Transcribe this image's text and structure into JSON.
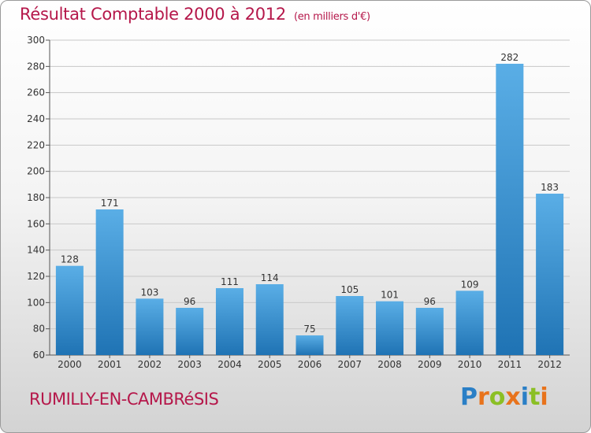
{
  "title": "Résultat Comptable 2000 à 2012",
  "subtitle": "(en milliers d'€)",
  "town": "RUMILLY-EN-CAMBRéSIS",
  "logo": {
    "letters": [
      "P",
      "r",
      "o",
      "x",
      "i",
      "t",
      "i"
    ],
    "colors": [
      "#2a7fc6",
      "#e8731c",
      "#8bbf25",
      "#e8731c",
      "#2a7fc6",
      "#8bbf25",
      "#e8731c"
    ]
  },
  "colors": {
    "bar_light": "#5aaee6",
    "bar_dark": "#1f73b4",
    "title": "#b5174a",
    "grid": "#c8c8c8"
  },
  "chart_data": {
    "type": "bar",
    "categories": [
      "2000",
      "2001",
      "2002",
      "2003",
      "2004",
      "2005",
      "2006",
      "2007",
      "2008",
      "2009",
      "2010",
      "2011",
      "2012"
    ],
    "values": [
      128,
      171,
      103,
      96,
      111,
      114,
      75,
      105,
      101,
      96,
      109,
      282,
      183
    ],
    "ylim": [
      60,
      300
    ],
    "yticks": [
      60,
      80,
      100,
      120,
      140,
      160,
      180,
      200,
      220,
      240,
      260,
      280,
      300
    ],
    "grid": true,
    "xlabel": "",
    "ylabel": ""
  }
}
